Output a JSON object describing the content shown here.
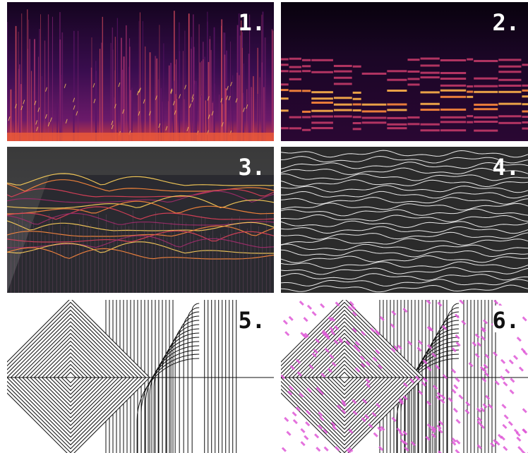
{
  "panels": [
    {
      "label": "1."
    },
    {
      "label": "2."
    },
    {
      "label": "3."
    },
    {
      "label": "4."
    },
    {
      "label": "5."
    },
    {
      "label": "6."
    }
  ]
}
